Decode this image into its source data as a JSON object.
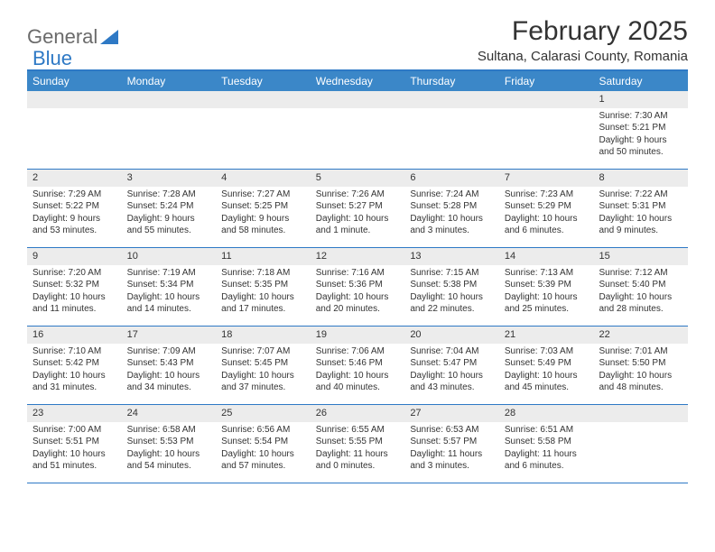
{
  "logo": {
    "text1": "General",
    "text2": "Blue",
    "triangle_color": "#2e79c5"
  },
  "title": "February 2025",
  "location": "Sultana, Calarasi County, Romania",
  "colors": {
    "header_bar": "#3b87c8",
    "rule": "#2e79c5",
    "band": "#ececec",
    "text": "#333333",
    "dow_text": "#ffffff"
  },
  "days_of_week": [
    "Sunday",
    "Monday",
    "Tuesday",
    "Wednesday",
    "Thursday",
    "Friday",
    "Saturday"
  ],
  "weeks": [
    [
      {
        "n": "",
        "sunrise": "",
        "sunset": "",
        "daylight": ""
      },
      {
        "n": "",
        "sunrise": "",
        "sunset": "",
        "daylight": ""
      },
      {
        "n": "",
        "sunrise": "",
        "sunset": "",
        "daylight": ""
      },
      {
        "n": "",
        "sunrise": "",
        "sunset": "",
        "daylight": ""
      },
      {
        "n": "",
        "sunrise": "",
        "sunset": "",
        "daylight": ""
      },
      {
        "n": "",
        "sunrise": "",
        "sunset": "",
        "daylight": ""
      },
      {
        "n": "1",
        "sunrise": "Sunrise: 7:30 AM",
        "sunset": "Sunset: 5:21 PM",
        "daylight": "Daylight: 9 hours and 50 minutes."
      }
    ],
    [
      {
        "n": "2",
        "sunrise": "Sunrise: 7:29 AM",
        "sunset": "Sunset: 5:22 PM",
        "daylight": "Daylight: 9 hours and 53 minutes."
      },
      {
        "n": "3",
        "sunrise": "Sunrise: 7:28 AM",
        "sunset": "Sunset: 5:24 PM",
        "daylight": "Daylight: 9 hours and 55 minutes."
      },
      {
        "n": "4",
        "sunrise": "Sunrise: 7:27 AM",
        "sunset": "Sunset: 5:25 PM",
        "daylight": "Daylight: 9 hours and 58 minutes."
      },
      {
        "n": "5",
        "sunrise": "Sunrise: 7:26 AM",
        "sunset": "Sunset: 5:27 PM",
        "daylight": "Daylight: 10 hours and 1 minute."
      },
      {
        "n": "6",
        "sunrise": "Sunrise: 7:24 AM",
        "sunset": "Sunset: 5:28 PM",
        "daylight": "Daylight: 10 hours and 3 minutes."
      },
      {
        "n": "7",
        "sunrise": "Sunrise: 7:23 AM",
        "sunset": "Sunset: 5:29 PM",
        "daylight": "Daylight: 10 hours and 6 minutes."
      },
      {
        "n": "8",
        "sunrise": "Sunrise: 7:22 AM",
        "sunset": "Sunset: 5:31 PM",
        "daylight": "Daylight: 10 hours and 9 minutes."
      }
    ],
    [
      {
        "n": "9",
        "sunrise": "Sunrise: 7:20 AM",
        "sunset": "Sunset: 5:32 PM",
        "daylight": "Daylight: 10 hours and 11 minutes."
      },
      {
        "n": "10",
        "sunrise": "Sunrise: 7:19 AM",
        "sunset": "Sunset: 5:34 PM",
        "daylight": "Daylight: 10 hours and 14 minutes."
      },
      {
        "n": "11",
        "sunrise": "Sunrise: 7:18 AM",
        "sunset": "Sunset: 5:35 PM",
        "daylight": "Daylight: 10 hours and 17 minutes."
      },
      {
        "n": "12",
        "sunrise": "Sunrise: 7:16 AM",
        "sunset": "Sunset: 5:36 PM",
        "daylight": "Daylight: 10 hours and 20 minutes."
      },
      {
        "n": "13",
        "sunrise": "Sunrise: 7:15 AM",
        "sunset": "Sunset: 5:38 PM",
        "daylight": "Daylight: 10 hours and 22 minutes."
      },
      {
        "n": "14",
        "sunrise": "Sunrise: 7:13 AM",
        "sunset": "Sunset: 5:39 PM",
        "daylight": "Daylight: 10 hours and 25 minutes."
      },
      {
        "n": "15",
        "sunrise": "Sunrise: 7:12 AM",
        "sunset": "Sunset: 5:40 PM",
        "daylight": "Daylight: 10 hours and 28 minutes."
      }
    ],
    [
      {
        "n": "16",
        "sunrise": "Sunrise: 7:10 AM",
        "sunset": "Sunset: 5:42 PM",
        "daylight": "Daylight: 10 hours and 31 minutes."
      },
      {
        "n": "17",
        "sunrise": "Sunrise: 7:09 AM",
        "sunset": "Sunset: 5:43 PM",
        "daylight": "Daylight: 10 hours and 34 minutes."
      },
      {
        "n": "18",
        "sunrise": "Sunrise: 7:07 AM",
        "sunset": "Sunset: 5:45 PM",
        "daylight": "Daylight: 10 hours and 37 minutes."
      },
      {
        "n": "19",
        "sunrise": "Sunrise: 7:06 AM",
        "sunset": "Sunset: 5:46 PM",
        "daylight": "Daylight: 10 hours and 40 minutes."
      },
      {
        "n": "20",
        "sunrise": "Sunrise: 7:04 AM",
        "sunset": "Sunset: 5:47 PM",
        "daylight": "Daylight: 10 hours and 43 minutes."
      },
      {
        "n": "21",
        "sunrise": "Sunrise: 7:03 AM",
        "sunset": "Sunset: 5:49 PM",
        "daylight": "Daylight: 10 hours and 45 minutes."
      },
      {
        "n": "22",
        "sunrise": "Sunrise: 7:01 AM",
        "sunset": "Sunset: 5:50 PM",
        "daylight": "Daylight: 10 hours and 48 minutes."
      }
    ],
    [
      {
        "n": "23",
        "sunrise": "Sunrise: 7:00 AM",
        "sunset": "Sunset: 5:51 PM",
        "daylight": "Daylight: 10 hours and 51 minutes."
      },
      {
        "n": "24",
        "sunrise": "Sunrise: 6:58 AM",
        "sunset": "Sunset: 5:53 PM",
        "daylight": "Daylight: 10 hours and 54 minutes."
      },
      {
        "n": "25",
        "sunrise": "Sunrise: 6:56 AM",
        "sunset": "Sunset: 5:54 PM",
        "daylight": "Daylight: 10 hours and 57 minutes."
      },
      {
        "n": "26",
        "sunrise": "Sunrise: 6:55 AM",
        "sunset": "Sunset: 5:55 PM",
        "daylight": "Daylight: 11 hours and 0 minutes."
      },
      {
        "n": "27",
        "sunrise": "Sunrise: 6:53 AM",
        "sunset": "Sunset: 5:57 PM",
        "daylight": "Daylight: 11 hours and 3 minutes."
      },
      {
        "n": "28",
        "sunrise": "Sunrise: 6:51 AM",
        "sunset": "Sunset: 5:58 PM",
        "daylight": "Daylight: 11 hours and 6 minutes."
      },
      {
        "n": "",
        "sunrise": "",
        "sunset": "",
        "daylight": ""
      }
    ]
  ]
}
